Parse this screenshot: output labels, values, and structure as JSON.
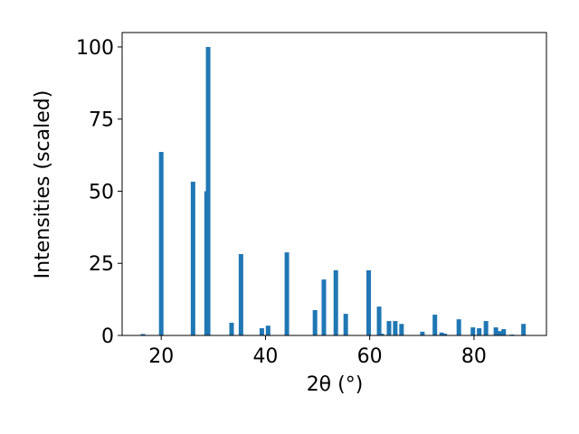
{
  "chart_data": {
    "type": "bar",
    "xlabel": "2θ (°)",
    "ylabel": "Intensities (scaled)",
    "x": [
      16.5,
      20.0,
      26.1,
      28.7,
      29.0,
      33.5,
      35.3,
      39.3,
      40.5,
      44.1,
      49.5,
      51.2,
      53.5,
      55.4,
      59.8,
      61.8,
      62.3,
      63.7,
      64.9,
      66.1,
      70.1,
      72.5,
      73.8,
      74.4,
      77.1,
      79.8,
      81.0,
      82.3,
      84.2,
      84.9,
      85.7,
      87.3,
      89.5
    ],
    "values": [
      0.5,
      63.6,
      53.3,
      50,
      100,
      4.4,
      28.2,
      2.5,
      3.4,
      28.8,
      8.8,
      19.4,
      22.6,
      7.5,
      22.6,
      10,
      0.6,
      5,
      5,
      4,
      1.3,
      7.2,
      1,
      0.6,
      5.6,
      2.8,
      2.5,
      5,
      2.8,
      1.5,
      2.2,
      0.3,
      4
    ],
    "color": "#1f77b4",
    "xlim": [
      12.5,
      93.9
    ],
    "ylim": [
      0,
      105
    ],
    "xticks": [
      20,
      40,
      60,
      80
    ],
    "yticks": [
      0,
      25,
      50,
      75,
      100
    ]
  }
}
